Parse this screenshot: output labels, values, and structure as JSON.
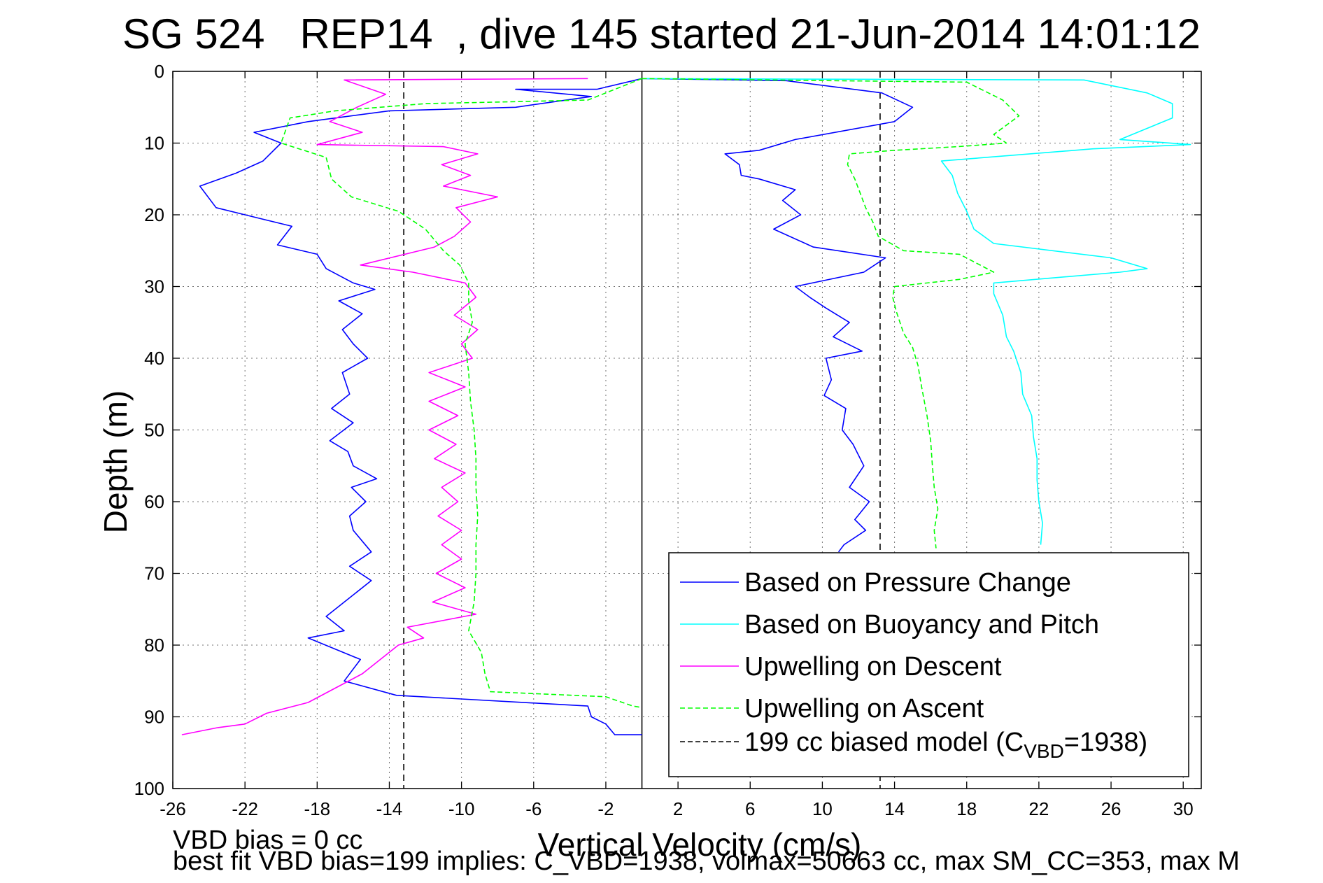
{
  "figure": {
    "title": "SG 524   REP14  , dive 145 started 21-Jun-2014 14:01:12",
    "footer_line1": "VBD bias = 0 cc",
    "footer_line2": "best fit VBD bias=199 implies: C_VBD=1938, volmax=50663 cc, max SM_CC=353, max M"
  },
  "chart_data": {
    "type": "line",
    "xlabel": "Vertical Velocity (cm/s)",
    "ylabel": "Depth (m)",
    "xlim": [
      -26,
      31
    ],
    "ylim": [
      0,
      100
    ],
    "y_reversed": true,
    "xticks": [
      -26,
      -22,
      -18,
      -14,
      -10,
      -6,
      -2,
      2,
      6,
      10,
      14,
      18,
      22,
      26,
      30
    ],
    "yticks": [
      0,
      10,
      20,
      30,
      40,
      50,
      60,
      70,
      80,
      90,
      100
    ],
    "grid": true,
    "legend_position": "lower-right",
    "reference_lines": [
      {
        "orientation": "vertical",
        "x": 0,
        "style": "solid",
        "color": "#000000"
      },
      {
        "orientation": "vertical",
        "x": -13.2,
        "style": "dashed",
        "color": "#000000"
      },
      {
        "orientation": "vertical",
        "x": 13.2,
        "style": "dashed",
        "color": "#000000"
      }
    ],
    "series": [
      {
        "name": "Based on Pressure Change",
        "color": "#0000ff",
        "style": "solid",
        "points": [
          [
            0,
            1
          ],
          [
            -2.5,
            2.5
          ],
          [
            -7,
            2.5
          ],
          [
            -2.8,
            3.5
          ],
          [
            -7,
            5
          ],
          [
            -14,
            5.5
          ],
          [
            -18.5,
            7
          ],
          [
            -21.5,
            8.5
          ],
          [
            -20,
            10
          ],
          [
            -21,
            12.5
          ],
          [
            -22.5,
            14.2
          ],
          [
            -24.5,
            16
          ],
          [
            -23.6,
            19
          ],
          [
            -22,
            20
          ],
          [
            -19.4,
            21.6
          ],
          [
            -20.2,
            24.2
          ],
          [
            -18,
            25.5
          ],
          [
            -17.5,
            27.5
          ],
          [
            -16,
            29.5
          ],
          [
            -14.8,
            30.4
          ],
          [
            -16.8,
            32
          ],
          [
            -15.5,
            33.8
          ],
          [
            -16.6,
            36
          ],
          [
            -16,
            38
          ],
          [
            -15.2,
            40
          ],
          [
            -16.6,
            42
          ],
          [
            -16.2,
            45
          ],
          [
            -17.2,
            47
          ],
          [
            -16,
            49
          ],
          [
            -17.3,
            51.5
          ],
          [
            -16.3,
            53
          ],
          [
            -16,
            55
          ],
          [
            -14.7,
            56.8
          ],
          [
            -16.1,
            58
          ],
          [
            -15.3,
            60
          ],
          [
            -16.2,
            62
          ],
          [
            -16,
            64
          ],
          [
            -15,
            67
          ],
          [
            -16.2,
            69
          ],
          [
            -15,
            71
          ],
          [
            -16.5,
            74
          ],
          [
            -17.5,
            76
          ],
          [
            -16.5,
            78
          ],
          [
            -18.5,
            79
          ],
          [
            -15.6,
            82
          ],
          [
            -16.5,
            85
          ],
          [
            -13.6,
            87
          ],
          [
            -3,
            88.5
          ],
          [
            -2.8,
            90
          ],
          [
            -2,
            91
          ],
          [
            -1.5,
            92.5
          ],
          [
            0,
            92.5
          ]
        ]
      },
      {
        "name": "Based on Pressure Change",
        "color": "#0000ff",
        "style": "solid",
        "points": [
          [
            0,
            1
          ],
          [
            8,
            1.3
          ],
          [
            13.3,
            3
          ],
          [
            15,
            5
          ],
          [
            14,
            7
          ],
          [
            8.5,
            9.5
          ],
          [
            6.5,
            11
          ],
          [
            4.6,
            11.5
          ],
          [
            5.4,
            13
          ],
          [
            5.5,
            14.5
          ],
          [
            6.5,
            15
          ],
          [
            8.5,
            16.5
          ],
          [
            7.8,
            18
          ],
          [
            8.8,
            20
          ],
          [
            7.3,
            22
          ],
          [
            9.5,
            24.5
          ],
          [
            13.5,
            26
          ],
          [
            12.3,
            28
          ],
          [
            8.5,
            30
          ],
          [
            9.3,
            31.5
          ],
          [
            10.2,
            33
          ],
          [
            11.5,
            35
          ],
          [
            10.6,
            37
          ],
          [
            12.2,
            39
          ],
          [
            10.2,
            40
          ],
          [
            10.5,
            43
          ],
          [
            10.1,
            45.2
          ],
          [
            11.3,
            47
          ],
          [
            11.1,
            50
          ],
          [
            11.7,
            52
          ],
          [
            12.3,
            55
          ],
          [
            11.5,
            58
          ],
          [
            12.6,
            60
          ],
          [
            11.8,
            62.5
          ],
          [
            12.4,
            64
          ],
          [
            11.2,
            66
          ],
          [
            10.9,
            67
          ]
        ]
      },
      {
        "name": "Based on Buoyancy and Pitch",
        "color": "#00ffff",
        "style": "solid",
        "points": [
          [
            0,
            1
          ],
          [
            24.5,
            1.2
          ],
          [
            28,
            3
          ],
          [
            29.4,
            4.5
          ],
          [
            29.4,
            6.5
          ],
          [
            26.5,
            9.5
          ],
          [
            30.4,
            10.2
          ],
          [
            25,
            10.8
          ],
          [
            16.6,
            12.5
          ],
          [
            17.2,
            14.5
          ],
          [
            17.5,
            17
          ],
          [
            18,
            19.5
          ],
          [
            18.4,
            22
          ],
          [
            19.5,
            24
          ],
          [
            26,
            26
          ],
          [
            28,
            27.5
          ],
          [
            26.5,
            28
          ],
          [
            19.5,
            29.5
          ],
          [
            19.5,
            31
          ],
          [
            20,
            34
          ],
          [
            20.2,
            37
          ],
          [
            20.6,
            39
          ],
          [
            21,
            42
          ],
          [
            21.1,
            45
          ],
          [
            21.6,
            48
          ],
          [
            21.7,
            51
          ],
          [
            21.9,
            54
          ],
          [
            21.9,
            57
          ],
          [
            22,
            60
          ],
          [
            22.2,
            63
          ],
          [
            22.1,
            66
          ]
        ]
      },
      {
        "name": "Upwelling on Descent",
        "color": "#ff00ff",
        "style": "solid",
        "points": [
          [
            -3,
            1
          ],
          [
            -16.5,
            1.2
          ],
          [
            -14.2,
            3.2
          ],
          [
            -15.8,
            5
          ],
          [
            -17.3,
            7
          ],
          [
            -15.5,
            8.5
          ],
          [
            -18,
            10.2
          ],
          [
            -11,
            10.5
          ],
          [
            -9.1,
            11.5
          ],
          [
            -11.1,
            13
          ],
          [
            -9.5,
            14.5
          ],
          [
            -11,
            16
          ],
          [
            -8,
            17.5
          ],
          [
            -10.3,
            19
          ],
          [
            -9.5,
            21
          ],
          [
            -10.4,
            23
          ],
          [
            -11.5,
            24.5
          ],
          [
            -15.6,
            27
          ],
          [
            -12.7,
            28
          ],
          [
            -9.8,
            29.5
          ],
          [
            -9.2,
            31.5
          ],
          [
            -10.4,
            34
          ],
          [
            -9.1,
            36
          ],
          [
            -10,
            38
          ],
          [
            -9.4,
            40
          ],
          [
            -11.8,
            42
          ],
          [
            -9.8,
            44
          ],
          [
            -11.8,
            46
          ],
          [
            -10.2,
            48
          ],
          [
            -11.8,
            50
          ],
          [
            -10.3,
            52
          ],
          [
            -11.5,
            54
          ],
          [
            -9.8,
            56
          ],
          [
            -11.1,
            58
          ],
          [
            -10.2,
            60
          ],
          [
            -11.3,
            62
          ],
          [
            -10,
            64
          ],
          [
            -11.1,
            66
          ],
          [
            -10,
            68
          ],
          [
            -11.4,
            70
          ],
          [
            -9.8,
            72
          ],
          [
            -11.6,
            74
          ],
          [
            -9.2,
            75.7
          ],
          [
            -13,
            77.5
          ],
          [
            -12.1,
            79
          ],
          [
            -13.5,
            80
          ],
          [
            -14.5,
            82
          ],
          [
            -15.5,
            84
          ],
          [
            -17,
            86
          ],
          [
            -18.5,
            88
          ],
          [
            -20.8,
            89.5
          ],
          [
            -22,
            91
          ],
          [
            -23.5,
            91.5
          ],
          [
            -25.5,
            92.5
          ]
        ]
      },
      {
        "name": "Upwelling on Ascent",
        "color": "#00ff00",
        "style": "dashed",
        "points": [
          [
            0,
            1
          ],
          [
            -3,
            4
          ],
          [
            -12,
            4.5
          ],
          [
            -17,
            5.5
          ],
          [
            -19.5,
            6.5
          ],
          [
            -20,
            10
          ],
          [
            -17.5,
            12
          ],
          [
            -17.2,
            15
          ],
          [
            -16.1,
            17.5
          ],
          [
            -13.5,
            19.5
          ],
          [
            -12,
            22
          ],
          [
            -11,
            25
          ],
          [
            -10.1,
            27
          ],
          [
            -9.6,
            29.5
          ],
          [
            -9.6,
            32
          ],
          [
            -9.4,
            35
          ],
          [
            -9.8,
            38
          ],
          [
            -9.6,
            42
          ],
          [
            -9.5,
            46
          ],
          [
            -9.3,
            50
          ],
          [
            -9.2,
            54
          ],
          [
            -9.2,
            58
          ],
          [
            -9.1,
            62
          ],
          [
            -9.2,
            66
          ],
          [
            -9.2,
            70
          ],
          [
            -9.3,
            74
          ],
          [
            -9.6,
            78
          ],
          [
            -8.9,
            81
          ],
          [
            -8.7,
            84
          ],
          [
            -8.4,
            86.5
          ],
          [
            -2,
            87.2
          ],
          [
            -0.5,
            88.5
          ],
          [
            0,
            88.7
          ]
        ]
      },
      {
        "name": "Upwelling on Ascent",
        "color": "#00ff00",
        "style": "dashed",
        "points": [
          [
            0,
            1
          ],
          [
            18,
            1.5
          ],
          [
            20,
            4
          ],
          [
            20.9,
            6.2
          ],
          [
            19.5,
            8.8
          ],
          [
            20.2,
            10
          ],
          [
            17.5,
            10.5
          ],
          [
            14,
            11
          ],
          [
            11.5,
            11.5
          ],
          [
            11.4,
            13
          ],
          [
            11.8,
            15
          ],
          [
            12.1,
            17
          ],
          [
            12.4,
            19
          ],
          [
            12.8,
            21
          ],
          [
            13.1,
            23
          ],
          [
            14.5,
            25
          ],
          [
            17.6,
            25.5
          ],
          [
            19.5,
            28
          ],
          [
            17.6,
            29
          ],
          [
            14,
            30
          ],
          [
            13.9,
            31.5
          ],
          [
            14.1,
            33.5
          ],
          [
            14.5,
            36.5
          ],
          [
            15,
            38.5
          ],
          [
            15.3,
            41
          ],
          [
            15.5,
            44
          ],
          [
            15.8,
            48
          ],
          [
            16,
            51.5
          ],
          [
            16.1,
            55
          ],
          [
            16.2,
            58
          ],
          [
            16.4,
            61
          ],
          [
            16.2,
            64
          ],
          [
            16.3,
            66.5
          ]
        ]
      },
      {
        "name": "199 cc biased model (C",
        "color": "#000000",
        "style": "dashed",
        "legend_only": true,
        "points": []
      }
    ]
  },
  "legend": {
    "items": [
      {
        "label": "Based on Pressure Change",
        "color": "#0000ff",
        "style": "solid"
      },
      {
        "label": "Based on Buoyancy and Pitch",
        "color": "#00ffff",
        "style": "solid"
      },
      {
        "label": "Upwelling on Descent",
        "color": "#ff00ff",
        "style": "solid"
      },
      {
        "label": "Upwelling on Ascent",
        "color": "#00ff00",
        "style": "dashed"
      },
      {
        "label": "199 cc biased model (C",
        "sub": "VBD",
        "suffix": "=1938)",
        "color": "#000000",
        "style": "dashed"
      }
    ]
  }
}
